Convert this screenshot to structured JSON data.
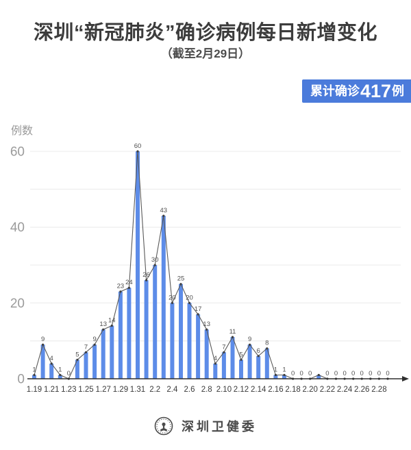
{
  "header": {
    "title": "深圳“新冠肺炎”确诊病例每日新增变化",
    "subtitle": "（截至2月29日）"
  },
  "badge": {
    "prefix": "累计确诊",
    "value": "417",
    "suffix": "例",
    "bg_color": "#4b7bdb",
    "text_color": "#ffffff"
  },
  "chart_data": {
    "type": "bar",
    "overlay": "line",
    "title": "深圳“新冠肺炎”确诊病例每日新增变化（截至2月29日）",
    "xlabel": "",
    "ylabel": "例数",
    "categories": [
      "1.19",
      "1.20",
      "1.21",
      "1.22",
      "1.23",
      "1.24",
      "1.25",
      "1.26",
      "1.27",
      "1.28",
      "1.29",
      "1.30",
      "1.31",
      "2.1",
      "2.2",
      "2.3",
      "2.4",
      "2.5",
      "2.6",
      "2.7",
      "2.8",
      "2.9",
      "2.10",
      "2.11",
      "2.12",
      "2.13",
      "2.14",
      "2.15",
      "2.16",
      "2.17",
      "2.18",
      "2.19",
      "2.20",
      "2.21",
      "2.22",
      "2.23",
      "2.24",
      "2.25",
      "2.26",
      "2.27",
      "2.28",
      "2.29"
    ],
    "values": [
      1,
      9,
      4,
      1,
      0,
      5,
      7,
      9,
      13,
      14,
      23,
      24,
      60,
      26,
      30,
      43,
      20,
      25,
      20,
      17,
      13,
      4,
      7,
      11,
      5,
      9,
      6,
      8,
      1,
      1,
      0,
      0,
      0,
      1,
      0,
      0,
      0,
      0,
      0,
      0,
      0,
      0
    ],
    "point_labels": [
      "1",
      "9",
      "4",
      "1",
      "0",
      "5",
      "7",
      "9",
      "13",
      "14",
      "23",
      "24",
      "60",
      "26",
      "30",
      "43",
      "20",
      "25",
      "20",
      "17",
      "13",
      "4",
      "7",
      "11",
      "5",
      "9",
      "6",
      "8",
      "1",
      "1",
      "0",
      "0",
      "0",
      "",
      "0",
      "0",
      "0",
      "0",
      "0",
      "0",
      "0",
      "0"
    ],
    "x_tick_label_every": 2,
    "y_ticks": [
      0,
      20,
      40,
      60
    ],
    "ylim": [
      0,
      62
    ],
    "grid_step": 10,
    "grid": "horizontal",
    "legend_position": "none",
    "total": 417,
    "colors": {
      "bar": "#5d8ce8",
      "line": "#595959",
      "marker": "#3d3d3d",
      "grid": "#efefef",
      "axis": "#2f2f2f",
      "y_tick_label": "#9b9b9b",
      "x_tick_label": "#3a3a3a",
      "value_label": "#4f4f4f",
      "ylabel": "#999999"
    }
  },
  "footer": {
    "source": "深圳卫健委",
    "logo": "shenzhen-health-commission-emblem"
  }
}
